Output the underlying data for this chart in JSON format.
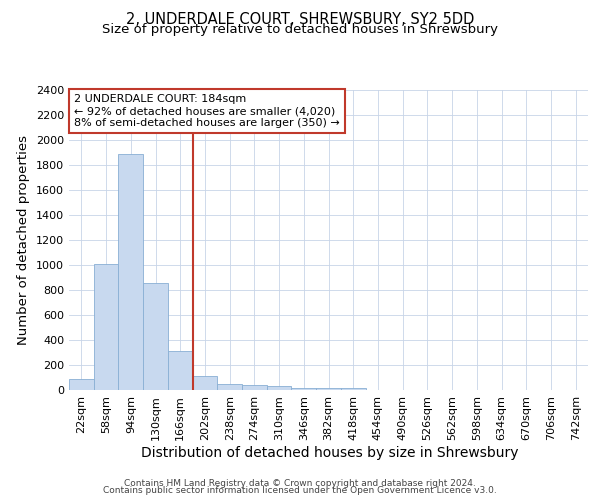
{
  "title_line1": "2, UNDERDALE COURT, SHREWSBURY, SY2 5DD",
  "title_line2": "Size of property relative to detached houses in Shrewsbury",
  "xlabel": "Distribution of detached houses by size in Shrewsbury",
  "ylabel": "Number of detached properties",
  "bin_labels": [
    "22sqm",
    "58sqm",
    "94sqm",
    "130sqm",
    "166sqm",
    "202sqm",
    "238sqm",
    "274sqm",
    "310sqm",
    "346sqm",
    "382sqm",
    "418sqm",
    "454sqm",
    "490sqm",
    "526sqm",
    "562sqm",
    "598sqm",
    "634sqm",
    "670sqm",
    "706sqm",
    "742sqm"
  ],
  "bar_values": [
    85,
    1010,
    1890,
    860,
    315,
    115,
    50,
    40,
    30,
    20,
    20,
    20,
    0,
    0,
    0,
    0,
    0,
    0,
    0,
    0,
    0
  ],
  "bar_color": "#c8d9ef",
  "bar_edge_color": "#89afd4",
  "vline_color": "#c0392b",
  "annotation_text": "2 UNDERDALE COURT: 184sqm\n← 92% of detached houses are smaller (4,020)\n8% of semi-detached houses are larger (350) →",
  "annotation_box_color": "#c0392b",
  "ylim": [
    0,
    2400
  ],
  "yticks": [
    0,
    200,
    400,
    600,
    800,
    1000,
    1200,
    1400,
    1600,
    1800,
    2000,
    2200,
    2400
  ],
  "footer_line1": "Contains HM Land Registry data © Crown copyright and database right 2024.",
  "footer_line2": "Contains public sector information licensed under the Open Government Licence v3.0.",
  "grid_color": "#c8d4e8",
  "title_fontsize": 10.5,
  "subtitle_fontsize": 9.5,
  "axis_label_fontsize": 9.5,
  "tick_fontsize": 8,
  "annotation_fontsize": 8,
  "footer_fontsize": 6.5
}
